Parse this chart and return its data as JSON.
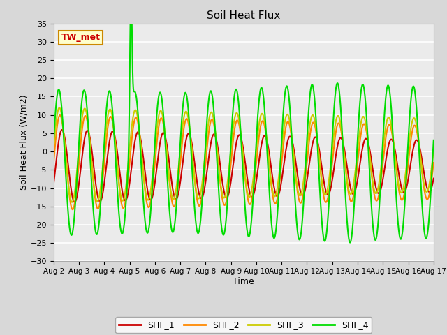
{
  "title": "Soil Heat Flux",
  "xlabel": "Time",
  "ylabel": "Soil Heat Flux (W/m2)",
  "ylim": [
    -30,
    35
  ],
  "yticks": [
    -30,
    -25,
    -20,
    -15,
    -10,
    -5,
    0,
    5,
    10,
    15,
    20,
    25,
    30,
    35
  ],
  "annotation_text": "TW_met",
  "annotation_box_facecolor": "#ffffcc",
  "annotation_text_color": "#cc0000",
  "annotation_border_color": "#cc8800",
  "fig_facecolor": "#d8d8d8",
  "plot_facecolor": "#ebebeb",
  "grid_color": "#ffffff",
  "line_colors": {
    "SHF_1": "#cc0000",
    "SHF_2": "#ff8800",
    "SHF_3": "#cccc00",
    "SHF_4": "#00dd00"
  },
  "legend_labels": [
    "SHF_1",
    "SHF_2",
    "SHF_3",
    "SHF_4"
  ],
  "n_days": 15,
  "start_day": 2,
  "points_per_day": 480
}
